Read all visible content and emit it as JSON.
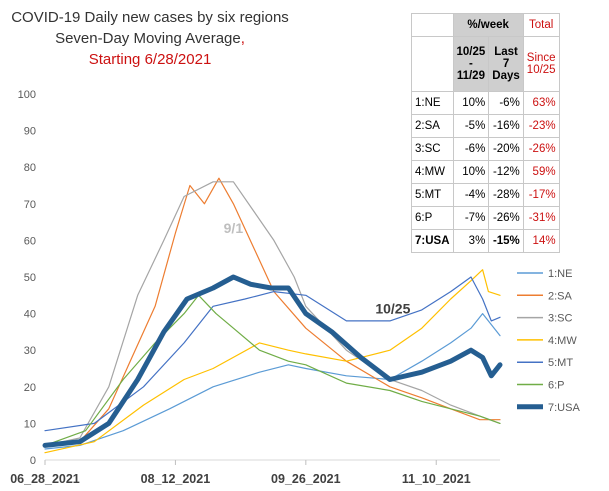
{
  "title": {
    "line1": "COVID-19 Daily new cases by six regions",
    "line2": "Seven-Day Moving Average",
    "line2_comma": ",",
    "line3": "Starting 6/28/2021"
  },
  "colors": {
    "1:NE": "#5b9bd5",
    "2:SA": "#ed7d31",
    "3:SC": "#a5a5a5",
    "4:MW": "#ffc000",
    "5:MT": "#4472c4",
    "6:P": "#70ad47",
    "7:USA": "#255e91",
    "red": "#cc1111"
  },
  "table": {
    "header": {
      "pct_week": "%/week",
      "total": "Total",
      "col1": [
        "10/25",
        "-",
        "11/29"
      ],
      "col2": [
        "Last",
        "7",
        "Days"
      ],
      "col3": [
        "Since",
        "10/25"
      ]
    },
    "rows": [
      {
        "region": "1:NE",
        "v1": "10%",
        "v2": "-6%",
        "total": "63%"
      },
      {
        "region": "2:SA",
        "v1": "-5%",
        "v2": "-16%",
        "total": "-23%"
      },
      {
        "region": "3:SC",
        "v1": "-6%",
        "v2": "-20%",
        "total": "-26%"
      },
      {
        "region": "4:MW",
        "v1": "10%",
        "v2": "-12%",
        "total": "59%"
      },
      {
        "region": "5:MT",
        "v1": "-4%",
        "v2": "-28%",
        "total": "-17%"
      },
      {
        "region": "6:P",
        "v1": "-7%",
        "v2": "-26%",
        "total": "-31%"
      },
      {
        "region": "7:USA",
        "v1": "3%",
        "v2": "-15%",
        "total": "14%"
      }
    ]
  },
  "chart_data": {
    "type": "line",
    "title": "COVID-19 Daily new cases by six regions Seven-Day Moving Average, Starting 6/28/2021",
    "x_start": "2021-06-28",
    "x_end": "2021-12-02",
    "x_ticks": [
      "06_28_2021",
      "08_12_2021",
      "09_26_2021",
      "11_10_2021"
    ],
    "ylim": [
      0,
      100
    ],
    "y_ticks": [
      0,
      10,
      20,
      30,
      40,
      50,
      60,
      70,
      80,
      90,
      100
    ],
    "grid": false,
    "legend": "right",
    "annotations": [
      {
        "text": "9/1",
        "date": "2021-09-01",
        "y": 62
      },
      {
        "text": "10/25",
        "date": "2021-10-25",
        "y": 40
      }
    ],
    "series": [
      {
        "name": "1:NE",
        "points": [
          [
            "2021-06-28",
            3
          ],
          [
            "2021-07-10",
            4
          ],
          [
            "2021-07-25",
            8
          ],
          [
            "2021-08-10",
            14
          ],
          [
            "2021-08-25",
            20
          ],
          [
            "2021-09-10",
            24
          ],
          [
            "2021-09-20",
            26
          ],
          [
            "2021-09-26",
            25
          ],
          [
            "2021-10-10",
            23
          ],
          [
            "2021-10-25",
            22
          ],
          [
            "2021-11-05",
            27
          ],
          [
            "2021-11-15",
            32
          ],
          [
            "2021-11-22",
            36
          ],
          [
            "2021-11-26",
            40
          ],
          [
            "2021-11-29",
            37
          ],
          [
            "2021-12-02",
            34
          ]
        ]
      },
      {
        "name": "2:SA",
        "points": [
          [
            "2021-06-28",
            4
          ],
          [
            "2021-07-10",
            5
          ],
          [
            "2021-07-20",
            14
          ],
          [
            "2021-07-28",
            28
          ],
          [
            "2021-08-05",
            42
          ],
          [
            "2021-08-12",
            62
          ],
          [
            "2021-08-17",
            75
          ],
          [
            "2021-08-22",
            70
          ],
          [
            "2021-08-27",
            77
          ],
          [
            "2021-09-01",
            70
          ],
          [
            "2021-09-08",
            58
          ],
          [
            "2021-09-15",
            46
          ],
          [
            "2021-09-26",
            36
          ],
          [
            "2021-10-10",
            27
          ],
          [
            "2021-10-25",
            20
          ],
          [
            "2021-11-05",
            17
          ],
          [
            "2021-11-15",
            14
          ],
          [
            "2021-11-25",
            11
          ],
          [
            "2021-12-02",
            11
          ]
        ]
      },
      {
        "name": "3:SC",
        "points": [
          [
            "2021-06-28",
            4
          ],
          [
            "2021-07-10",
            6
          ],
          [
            "2021-07-20",
            20
          ],
          [
            "2021-07-30",
            45
          ],
          [
            "2021-08-08",
            60
          ],
          [
            "2021-08-15",
            72
          ],
          [
            "2021-08-25",
            76
          ],
          [
            "2021-09-01",
            76
          ],
          [
            "2021-09-08",
            68
          ],
          [
            "2021-09-15",
            60
          ],
          [
            "2021-09-22",
            50
          ],
          [
            "2021-09-26",
            42
          ],
          [
            "2021-10-10",
            30
          ],
          [
            "2021-10-25",
            22
          ],
          [
            "2021-11-05",
            19
          ],
          [
            "2021-11-15",
            15
          ],
          [
            "2021-11-25",
            12
          ],
          [
            "2021-12-02",
            10
          ]
        ]
      },
      {
        "name": "4:MW",
        "points": [
          [
            "2021-06-28",
            2
          ],
          [
            "2021-07-15",
            5
          ],
          [
            "2021-08-01",
            15
          ],
          [
            "2021-08-15",
            22
          ],
          [
            "2021-08-25",
            25
          ],
          [
            "2021-09-10",
            32
          ],
          [
            "2021-09-20",
            30
          ],
          [
            "2021-09-26",
            29
          ],
          [
            "2021-10-10",
            27
          ],
          [
            "2021-10-25",
            30
          ],
          [
            "2021-11-05",
            36
          ],
          [
            "2021-11-15",
            44
          ],
          [
            "2021-11-22",
            49
          ],
          [
            "2021-11-26",
            52
          ],
          [
            "2021-11-28",
            46
          ],
          [
            "2021-12-02",
            45
          ]
        ]
      },
      {
        "name": "5:MT",
        "points": [
          [
            "2021-06-28",
            8
          ],
          [
            "2021-07-15",
            10
          ],
          [
            "2021-08-01",
            20
          ],
          [
            "2021-08-15",
            32
          ],
          [
            "2021-08-25",
            42
          ],
          [
            "2021-09-05",
            44
          ],
          [
            "2021-09-15",
            46
          ],
          [
            "2021-09-26",
            45
          ],
          [
            "2021-10-10",
            38
          ],
          [
            "2021-10-25",
            38
          ],
          [
            "2021-11-05",
            41
          ],
          [
            "2021-11-15",
            46
          ],
          [
            "2021-11-22",
            50
          ],
          [
            "2021-11-26",
            44
          ],
          [
            "2021-11-29",
            38
          ],
          [
            "2021-12-02",
            39
          ]
        ]
      },
      {
        "name": "6:P",
        "points": [
          [
            "2021-06-28",
            4
          ],
          [
            "2021-07-12",
            8
          ],
          [
            "2021-07-25",
            22
          ],
          [
            "2021-08-05",
            32
          ],
          [
            "2021-08-15",
            40
          ],
          [
            "2021-08-20",
            45
          ],
          [
            "2021-08-26",
            40
          ],
          [
            "2021-09-01",
            36
          ],
          [
            "2021-09-10",
            30
          ],
          [
            "2021-09-20",
            27
          ],
          [
            "2021-09-26",
            26
          ],
          [
            "2021-10-10",
            21
          ],
          [
            "2021-10-25",
            19
          ],
          [
            "2021-11-05",
            16
          ],
          [
            "2021-11-15",
            14
          ],
          [
            "2021-11-25",
            12
          ],
          [
            "2021-12-02",
            10
          ]
        ]
      },
      {
        "name": "7:USA",
        "points": [
          [
            "2021-06-28",
            4
          ],
          [
            "2021-07-10",
            5
          ],
          [
            "2021-07-20",
            10
          ],
          [
            "2021-07-30",
            22
          ],
          [
            "2021-08-08",
            35
          ],
          [
            "2021-08-16",
            44
          ],
          [
            "2021-08-25",
            47
          ],
          [
            "2021-09-01",
            50
          ],
          [
            "2021-09-07",
            48
          ],
          [
            "2021-09-14",
            47
          ],
          [
            "2021-09-20",
            47
          ],
          [
            "2021-09-26",
            40
          ],
          [
            "2021-10-05",
            35
          ],
          [
            "2021-10-15",
            28
          ],
          [
            "2021-10-25",
            22
          ],
          [
            "2021-11-05",
            24
          ],
          [
            "2021-11-15",
            27
          ],
          [
            "2021-11-22",
            30
          ],
          [
            "2021-11-26",
            28
          ],
          [
            "2021-11-29",
            23
          ],
          [
            "2021-12-02",
            26
          ]
        ]
      }
    ]
  }
}
